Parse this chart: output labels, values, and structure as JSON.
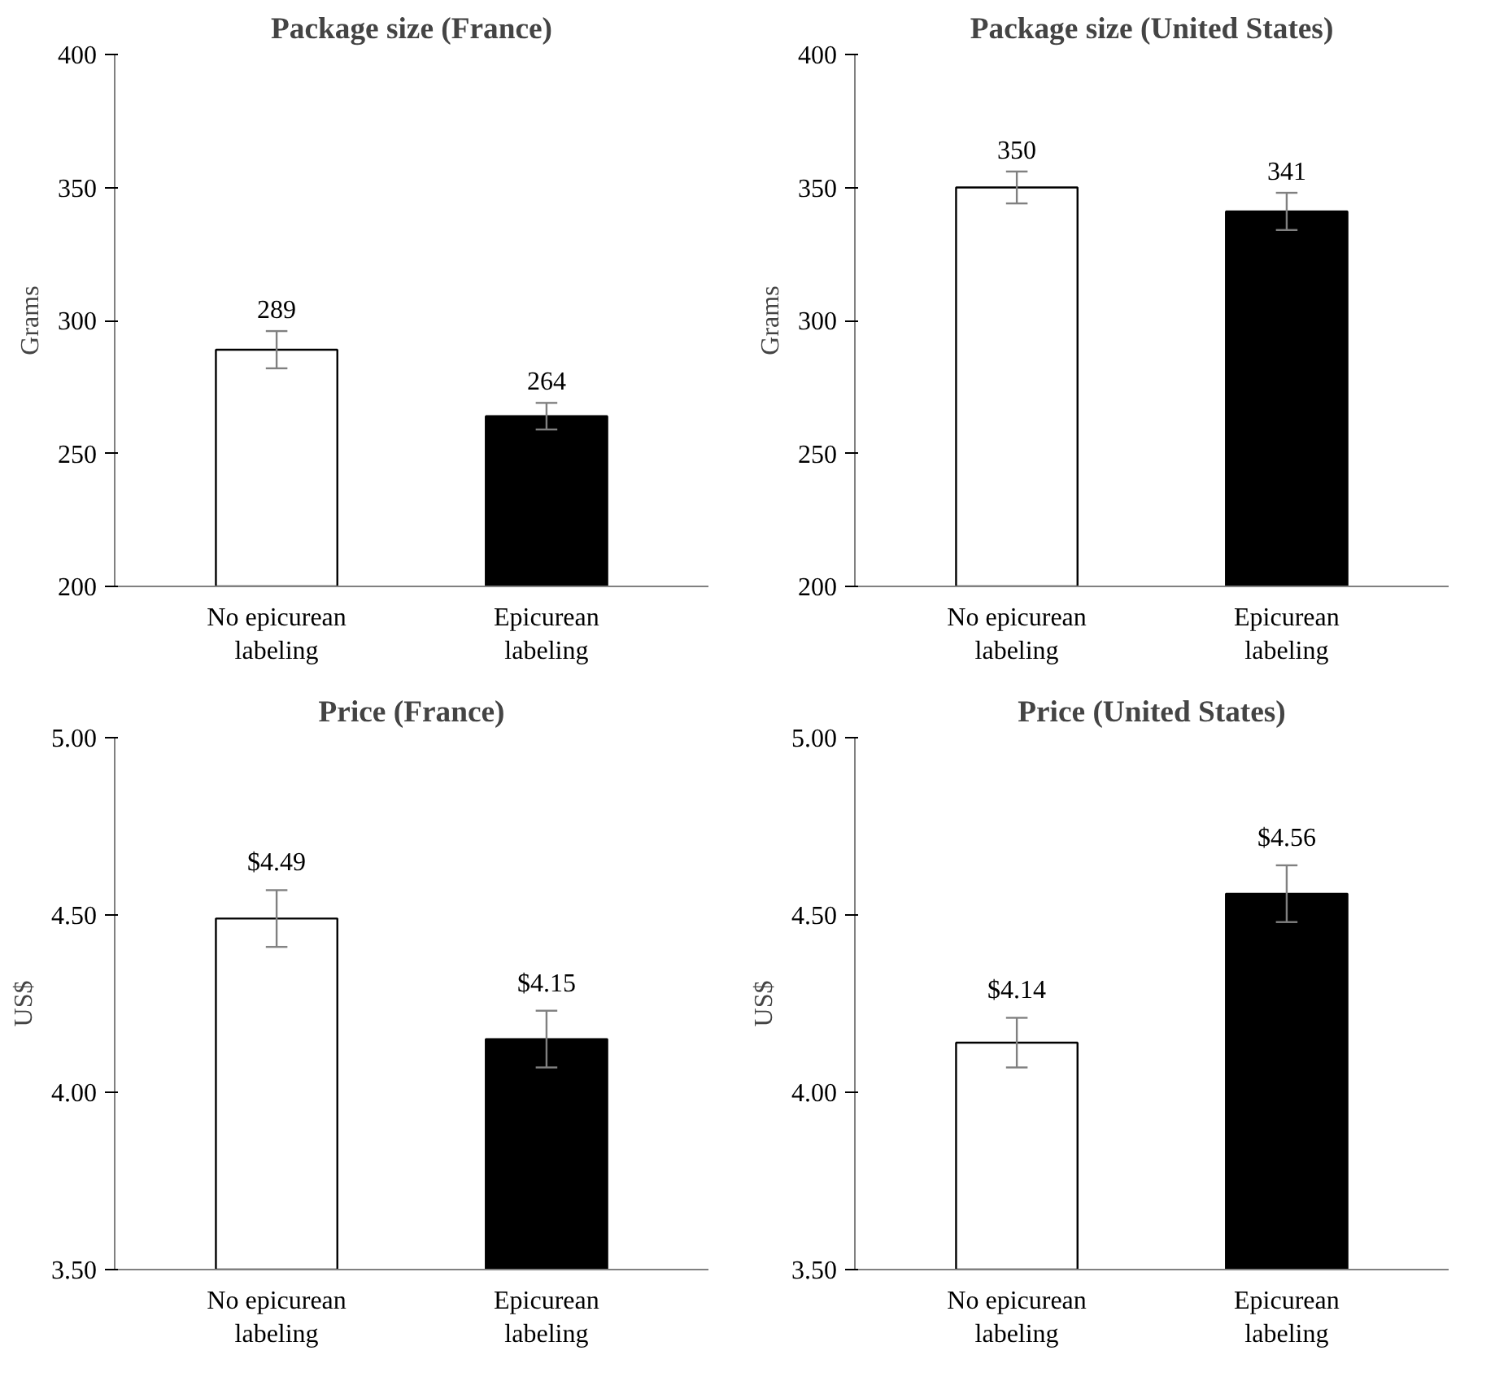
{
  "chart_data": [
    {
      "type": "bar",
      "title": "Package size (France)",
      "ylabel": "Grams",
      "categories": [
        "No epicurean\nlabeling",
        "Epicurean\nlabeling"
      ],
      "values": [
        289,
        264
      ],
      "colors": [
        "#ffffff",
        "#000000"
      ],
      "errors": [
        7,
        5
      ],
      "ylim": [
        200,
        400
      ],
      "yticks": [
        200,
        250,
        300,
        350,
        400
      ],
      "data_labels": true
    },
    {
      "type": "bar",
      "title": "Package size (United States)",
      "ylabel": "Grams",
      "categories": [
        "No epicurean\nlabeling",
        "Epicurean\nlabeling"
      ],
      "values": [
        350,
        341
      ],
      "colors": [
        "#ffffff",
        "#000000"
      ],
      "errors": [
        6,
        7
      ],
      "ylim": [
        200,
        400
      ],
      "yticks": [
        200,
        250,
        300,
        350,
        400
      ],
      "data_labels": true
    },
    {
      "type": "bar",
      "title": "Price (France)",
      "ylabel": "US$",
      "categories": [
        "No epicurean\nlabeling",
        "Epicurean\nlabeling"
      ],
      "values": [
        4.49,
        4.15
      ],
      "value_labels": [
        "$4.49",
        "$4.15"
      ],
      "colors": [
        "#ffffff",
        "#000000"
      ],
      "errors": [
        0.08,
        0.08
      ],
      "ylim": [
        3.5,
        5.0
      ],
      "yticks": [
        {
          "value": 3.5,
          "label": "3.50"
        },
        {
          "value": 4.0,
          "label": "4.00"
        },
        {
          "value": 4.5,
          "label": "4.50"
        },
        {
          "value": 5.0,
          "label": "5.00"
        }
      ]
    },
    {
      "type": "bar",
      "title": "Price (United States)",
      "ylabel": "US$",
      "categories": [
        "No epicurean\nlabeling",
        "Epicurean\nlabeling"
      ],
      "values": [
        4.14,
        4.56
      ],
      "value_labels": [
        "$4.14",
        "$4.56"
      ],
      "colors": [
        "#ffffff",
        "#000000"
      ],
      "errors": [
        0.07,
        0.08
      ],
      "ylim": [
        3.5,
        5.0
      ],
      "yticks": [
        {
          "value": 3.5,
          "label": "3.50"
        },
        {
          "value": 4.0,
          "label": "4.00"
        },
        {
          "value": 4.5,
          "label": "4.50"
        },
        {
          "value": 5.0,
          "label": "5.00"
        }
      ]
    }
  ]
}
